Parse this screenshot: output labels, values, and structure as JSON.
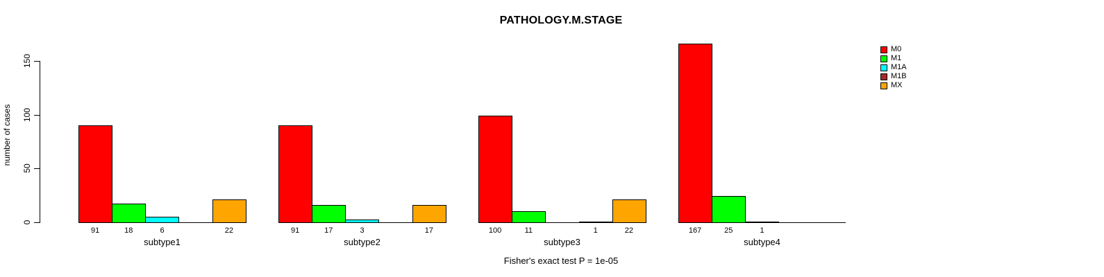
{
  "title": "PATHOLOGY.M.STAGE",
  "caption": "Fisher's exact test P = 1e-05",
  "chart_data": {
    "type": "bar",
    "title": "PATHOLOGY.M.STAGE",
    "xlabel": "",
    "ylabel": "number of cases",
    "yticks": [
      0,
      50,
      100,
      150
    ],
    "ylim": [
      0,
      167
    ],
    "grid": false,
    "legend_position": "right",
    "categories": [
      "subtype1",
      "subtype2",
      "subtype3",
      "subtype4"
    ],
    "series": [
      {
        "name": "M0",
        "color": "#ff0000",
        "values": [
          91,
          91,
          100,
          167
        ]
      },
      {
        "name": "M1",
        "color": "#00ff00",
        "values": [
          18,
          17,
          11,
          25
        ]
      },
      {
        "name": "M1A",
        "color": "#00ffff",
        "values": [
          6,
          3,
          0,
          1
        ]
      },
      {
        "name": "M1B",
        "color": "#a52a2a",
        "values": [
          0,
          0,
          1,
          0
        ]
      },
      {
        "name": "MX",
        "color": "#ffa500",
        "values": [
          22,
          17,
          22,
          0
        ]
      }
    ],
    "value_labels_shown_only_when_positive": true,
    "annotation": "Fisher's exact test P = 1e-05"
  }
}
